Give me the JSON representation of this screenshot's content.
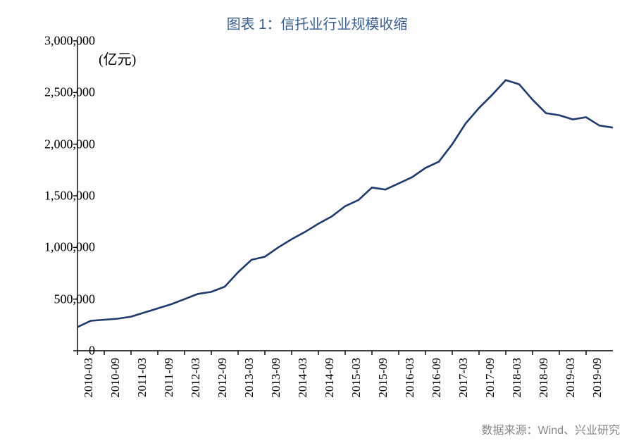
{
  "title": "图表 1：信托业行业规模收缩",
  "unit": "(亿元)",
  "source": "数据来源：Wind、兴业研究",
  "chart": {
    "type": "line",
    "background_color": "#fdfdfd",
    "line_color": "#1f3a6b",
    "line_width": 2.6,
    "axis_color": "#000000",
    "axis_width": 1.4,
    "ylim": [
      0,
      3000000
    ],
    "ytick_step": 500000,
    "y_ticks": [
      "0",
      "500,000",
      "1,000,000",
      "1,500,000",
      "2,000,000",
      "2,500,000",
      "3,000,000"
    ],
    "x_labels": [
      "2010-03",
      "2010-09",
      "2011-03",
      "2011-09",
      "2012-03",
      "2012-09",
      "2013-03",
      "2013-09",
      "2014-03",
      "2014-09",
      "2015-03",
      "2015-09",
      "2016-03",
      "2016-09",
      "2017-03",
      "2017-09",
      "2018-03",
      "2018-09",
      "2019-03",
      "2019-09"
    ],
    "label_fontsize": 18,
    "title_fontsize": 20,
    "title_color": "#3a5f8f",
    "data": [
      {
        "x": "2010-03",
        "y": 230000
      },
      {
        "x": "2010-06",
        "y": 290000
      },
      {
        "x": "2010-09",
        "y": 300000
      },
      {
        "x": "2010-12",
        "y": 310000
      },
      {
        "x": "2011-03",
        "y": 330000
      },
      {
        "x": "2011-06",
        "y": 370000
      },
      {
        "x": "2011-09",
        "y": 410000
      },
      {
        "x": "2011-12",
        "y": 450000
      },
      {
        "x": "2012-03",
        "y": 500000
      },
      {
        "x": "2012-06",
        "y": 550000
      },
      {
        "x": "2012-09",
        "y": 570000
      },
      {
        "x": "2012-12",
        "y": 620000
      },
      {
        "x": "2013-03",
        "y": 760000
      },
      {
        "x": "2013-06",
        "y": 880000
      },
      {
        "x": "2013-09",
        "y": 910000
      },
      {
        "x": "2013-12",
        "y": 1000000
      },
      {
        "x": "2014-03",
        "y": 1080000
      },
      {
        "x": "2014-06",
        "y": 1150000
      },
      {
        "x": "2014-09",
        "y": 1230000
      },
      {
        "x": "2014-12",
        "y": 1300000
      },
      {
        "x": "2015-03",
        "y": 1400000
      },
      {
        "x": "2015-06",
        "y": 1460000
      },
      {
        "x": "2015-09",
        "y": 1580000
      },
      {
        "x": "2015-12",
        "y": 1560000
      },
      {
        "x": "2016-03",
        "y": 1620000
      },
      {
        "x": "2016-06",
        "y": 1680000
      },
      {
        "x": "2016-09",
        "y": 1770000
      },
      {
        "x": "2016-12",
        "y": 1830000
      },
      {
        "x": "2017-03",
        "y": 2000000
      },
      {
        "x": "2017-06",
        "y": 2200000
      },
      {
        "x": "2017-09",
        "y": 2350000
      },
      {
        "x": "2017-12",
        "y": 2480000
      },
      {
        "x": "2018-03",
        "y": 2620000
      },
      {
        "x": "2018-06",
        "y": 2580000
      },
      {
        "x": "2018-09",
        "y": 2430000
      },
      {
        "x": "2018-12",
        "y": 2300000
      },
      {
        "x": "2019-03",
        "y": 2280000
      },
      {
        "x": "2019-06",
        "y": 2240000
      },
      {
        "x": "2019-09",
        "y": 2260000
      },
      {
        "x": "2019-12",
        "y": 2180000
      },
      {
        "x": "2020-03",
        "y": 2160000
      }
    ]
  }
}
